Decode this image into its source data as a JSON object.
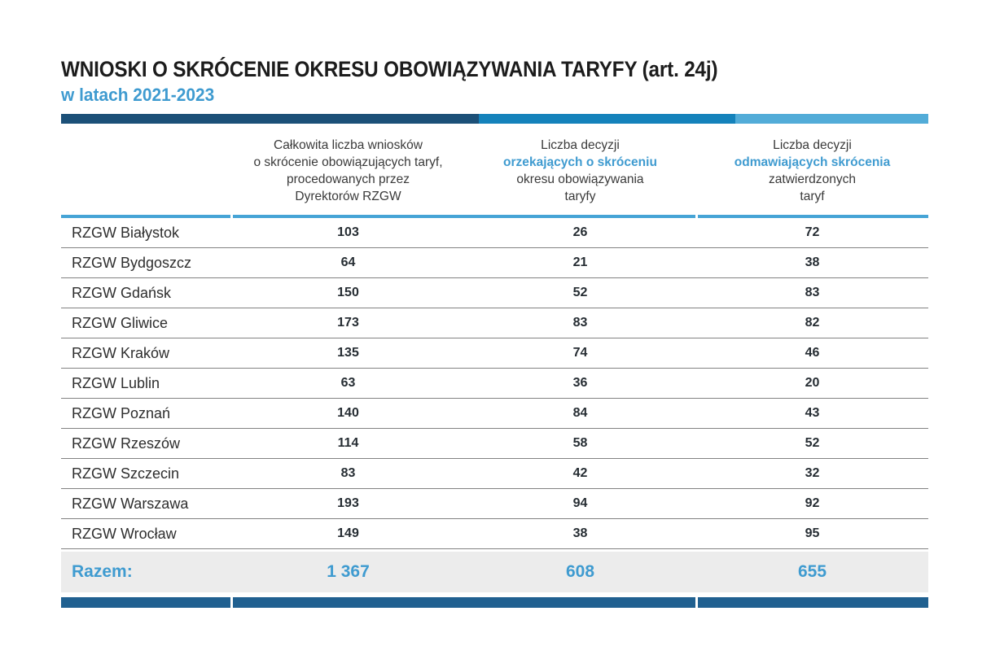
{
  "page": {
    "title": "WNIOSKI O SKRÓCENIE OKRESU OBOWIĄZYWANIA TARYFY (art. 24j)",
    "subtitle": "w latach 2021-2023"
  },
  "colors": {
    "accent_blue": "#3f9bd0",
    "bar_dark": "#1c5078",
    "bar_medium": "#1482bb",
    "bar_light": "#52acd8",
    "bottom_bar": "#206090",
    "header_rule": "#46a4d6",
    "totals_bg": "#ececec"
  },
  "table": {
    "columns": [
      {
        "lines": []
      },
      {
        "lines": [
          {
            "text": "Całkowita liczba wniosków",
            "accent": false
          },
          {
            "text": "o skrócenie obowiązujących taryf,",
            "accent": false
          },
          {
            "text": "procedowanych przez",
            "accent": false
          },
          {
            "text": "Dyrektorów RZGW",
            "accent": false
          }
        ]
      },
      {
        "lines": [
          {
            "text": "Liczba decyzji",
            "accent": false
          },
          {
            "text": "orzekających o skróceniu",
            "accent": true
          },
          {
            "text": "okresu obowiązywania",
            "accent": false
          },
          {
            "text": "taryfy",
            "accent": false
          }
        ]
      },
      {
        "lines": [
          {
            "text": "Liczba decyzji",
            "accent": false
          },
          {
            "text": "odmawiających skrócenia",
            "accent": true
          },
          {
            "text": "zatwierdzonych",
            "accent": false
          },
          {
            "text": "taryf",
            "accent": false
          }
        ]
      }
    ],
    "rows": [
      {
        "label": "RZGW Białystok",
        "values": [
          "103",
          "26",
          "72"
        ]
      },
      {
        "label": "RZGW Bydgoszcz",
        "values": [
          "64",
          "21",
          "38"
        ]
      },
      {
        "label": "RZGW Gdańsk",
        "values": [
          "150",
          "52",
          "83"
        ]
      },
      {
        "label": "RZGW Gliwice",
        "values": [
          "173",
          "83",
          "82"
        ]
      },
      {
        "label": "RZGW Kraków",
        "values": [
          "135",
          "74",
          "46"
        ]
      },
      {
        "label": "RZGW Lublin",
        "values": [
          "63",
          "36",
          "20"
        ]
      },
      {
        "label": "RZGW Poznań",
        "values": [
          "140",
          "84",
          "43"
        ]
      },
      {
        "label": "RZGW Rzeszów",
        "values": [
          "114",
          "58",
          "52"
        ]
      },
      {
        "label": "RZGW Szczecin",
        "values": [
          "83",
          "42",
          "32"
        ]
      },
      {
        "label": "RZGW Warszawa",
        "values": [
          "193",
          "94",
          "92"
        ]
      },
      {
        "label": "RZGW Wrocław",
        "values": [
          "149",
          "38",
          "95"
        ]
      }
    ],
    "totals": {
      "label": "Razem:",
      "values": [
        "1 367",
        "608",
        "655"
      ]
    }
  },
  "chart_data": {
    "type": "table",
    "title": "WNIOSKI O SKRÓCENIE OKRESU OBOWIĄZYWANIA TARYFY (art. 24j)",
    "subtitle": "w latach 2021-2023",
    "columns": [
      "Całkowita liczba wniosków o skrócenie obowiązujących taryf, procedowanych przez Dyrektorów RZGW",
      "Liczba decyzji orzekających o skróceniu okresu obowiązywania taryfy",
      "Liczba decyzji odmawiających skrócenia zatwierdzonych taryf"
    ],
    "rows": [
      {
        "label": "RZGW Białystok",
        "values": [
          103,
          26,
          72
        ]
      },
      {
        "label": "RZGW Bydgoszcz",
        "values": [
          64,
          21,
          38
        ]
      },
      {
        "label": "RZGW Gdańsk",
        "values": [
          150,
          52,
          83
        ]
      },
      {
        "label": "RZGW Gliwice",
        "values": [
          173,
          83,
          82
        ]
      },
      {
        "label": "RZGW Kraków",
        "values": [
          135,
          74,
          46
        ]
      },
      {
        "label": "RZGW Lublin",
        "values": [
          63,
          36,
          20
        ]
      },
      {
        "label": "RZGW Poznań",
        "values": [
          140,
          84,
          43
        ]
      },
      {
        "label": "RZGW Rzeszów",
        "values": [
          114,
          58,
          52
        ]
      },
      {
        "label": "RZGW Szczecin",
        "values": [
          83,
          42,
          32
        ]
      },
      {
        "label": "RZGW Warszawa",
        "values": [
          193,
          94,
          92
        ]
      },
      {
        "label": "RZGW Wrocław",
        "values": [
          149,
          38,
          95
        ]
      }
    ],
    "totals": {
      "label": "Razem:",
      "values": [
        1367,
        608,
        655
      ]
    }
  }
}
